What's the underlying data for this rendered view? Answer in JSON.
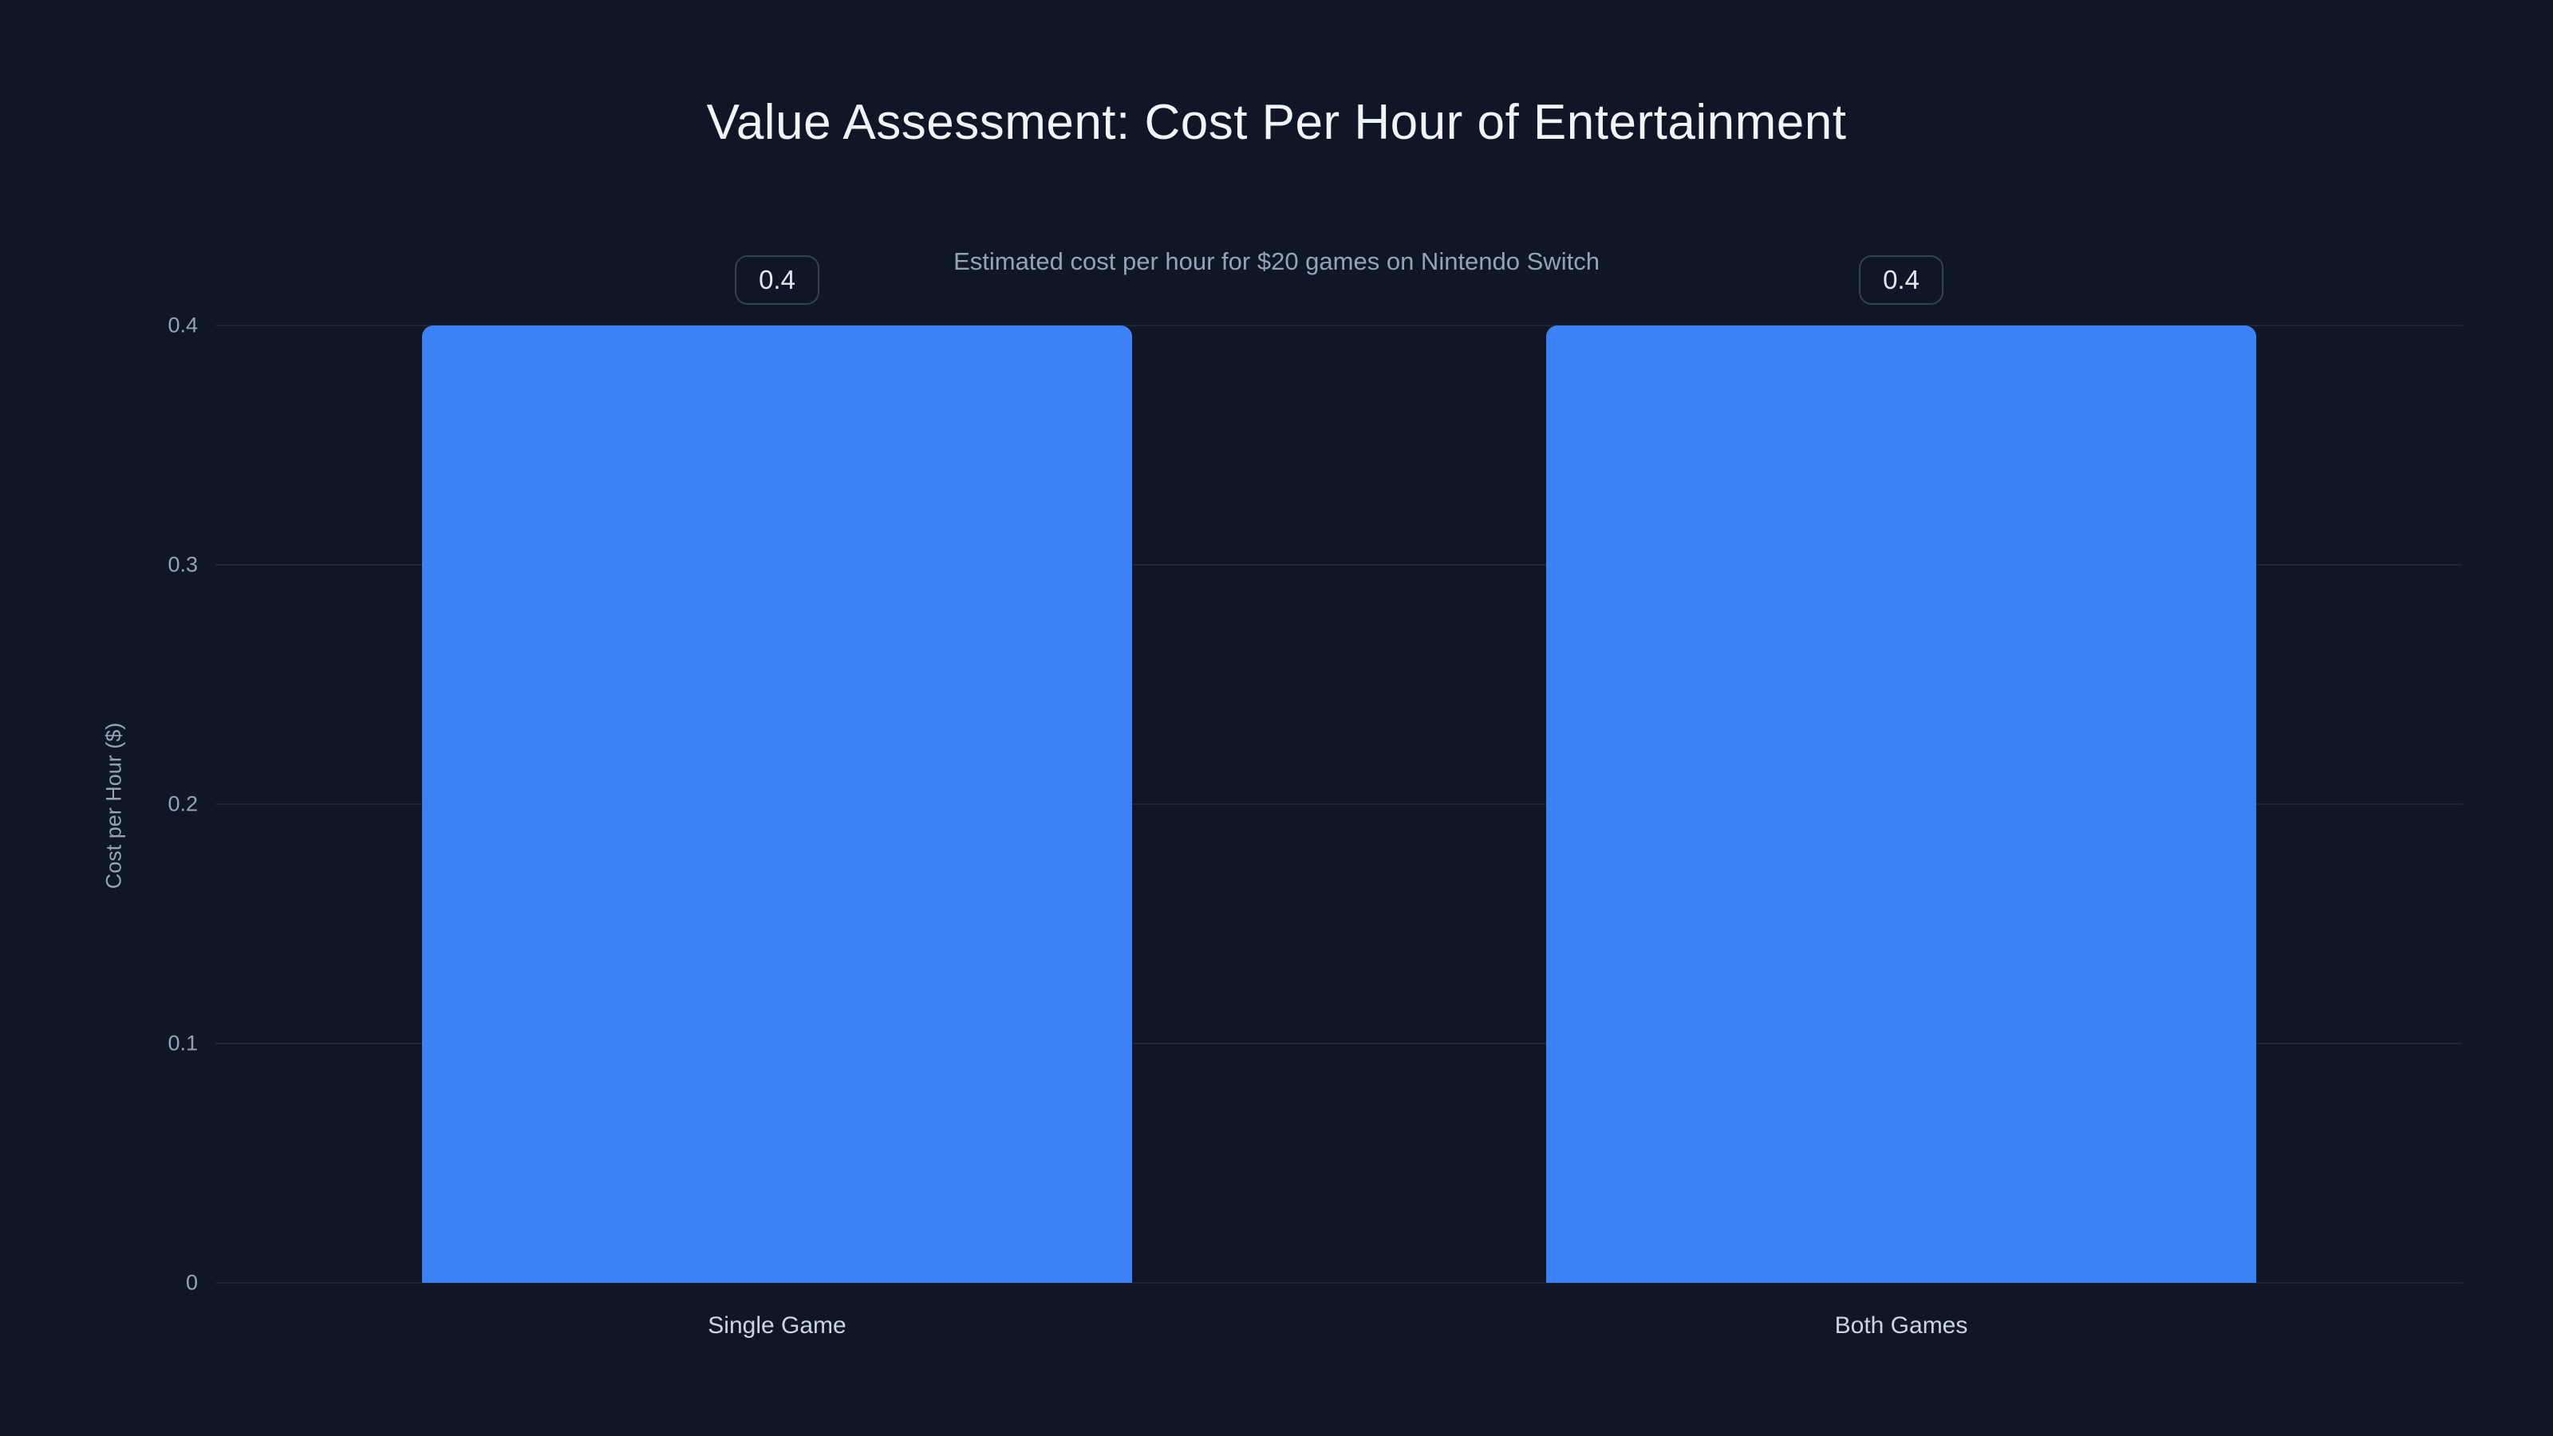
{
  "chart_data": {
    "type": "bar",
    "title": "Value Assessment: Cost Per Hour of Entertainment",
    "subtitle": "Estimated cost per hour for $20 games on Nintendo Switch",
    "categories": [
      "Single Game",
      "Both Games"
    ],
    "values": [
      0.4,
      0.4
    ],
    "value_labels": [
      "0.4",
      "0.4"
    ],
    "xlabel": "",
    "ylabel": "Cost per Hour ($)",
    "ylim": [
      0,
      0.4
    ],
    "yticks": [
      0,
      0.1,
      0.2,
      0.3,
      0.4
    ],
    "ytick_labels": [
      "0",
      "0.1",
      "0.2",
      "0.3",
      "0.4"
    ],
    "grid": true,
    "legend": "none",
    "colors": {
      "background": "#0f1726",
      "bar": "#3b82f6",
      "gridline": "#1d2737",
      "title": "#f1f5f9",
      "subtitle": "#94a3b8",
      "tick_label": "#94a3b8",
      "category_label": "#cbd5e1",
      "value_box_border": "#334155",
      "value_text": "#e2e8f0"
    }
  }
}
